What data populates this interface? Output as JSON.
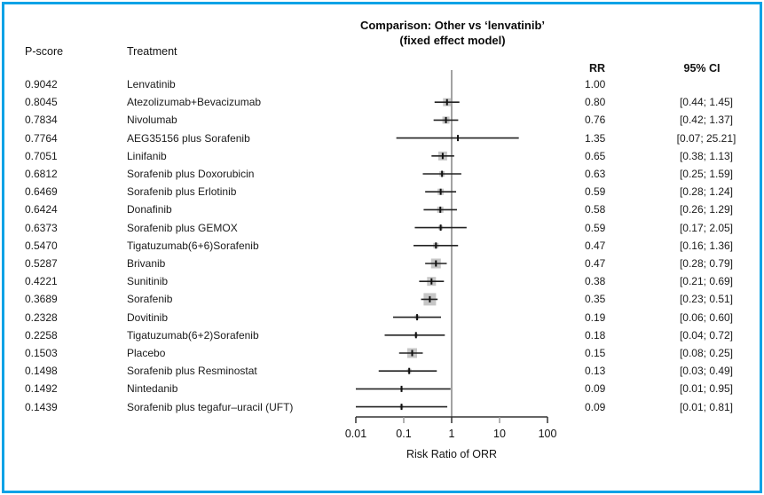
{
  "title": {
    "line1": "Comparison: Other vs ‘lenvatinib’",
    "line2": "(fixed effect model)"
  },
  "columns": {
    "p_score": "P-score",
    "treatment": "Treatment",
    "rr": "RR",
    "ci": "95% CI"
  },
  "chart_data": {
    "type": "forest",
    "xlabel": "Risk Ratio of ORR",
    "x_scale": "log",
    "x_min": 0.01,
    "x_max": 100,
    "x_ticks": [
      0.01,
      0.1,
      1,
      10,
      100
    ],
    "x_tick_labels": [
      "0.01",
      "0.1",
      "1",
      "10",
      "100"
    ],
    "reference_line": 1,
    "rows": [
      {
        "p_score": "0.9042",
        "treatment": "Lenvatinib",
        "rr": 1.0,
        "rr_label": "1.00",
        "ci_low": null,
        "ci_high": null,
        "ci_label": "",
        "weight": 0
      },
      {
        "p_score": "0.8045",
        "treatment": "Atezolizumab+Bevacizumab",
        "rr": 0.8,
        "rr_label": "0.80",
        "ci_low": 0.44,
        "ci_high": 1.45,
        "ci_label": "[0.44; 1.45]",
        "weight": 9
      },
      {
        "p_score": "0.7834",
        "treatment": "Nivolumab",
        "rr": 0.76,
        "rr_label": "0.76",
        "ci_low": 0.42,
        "ci_high": 1.37,
        "ci_label": "[0.42; 1.37]",
        "weight": 8
      },
      {
        "p_score": "0.7764",
        "treatment": "AEG35156 plus Sorafenib",
        "rr": 1.35,
        "rr_label": "1.35",
        "ci_low": 0.07,
        "ci_high": 25.21,
        "ci_label": "[0.07; 25.21]",
        "weight": 0
      },
      {
        "p_score": "0.7051",
        "treatment": "Linifanib",
        "rr": 0.65,
        "rr_label": "0.65",
        "ci_low": 0.38,
        "ci_high": 1.13,
        "ci_label": "[0.38; 1.13]",
        "weight": 10
      },
      {
        "p_score": "0.6812",
        "treatment": "Sorafenib plus Doxorubicin",
        "rr": 0.63,
        "rr_label": "0.63",
        "ci_low": 0.25,
        "ci_high": 1.59,
        "ci_label": "[0.25; 1.59]",
        "weight": 6
      },
      {
        "p_score": "0.6469",
        "treatment": "Sorafenib plus Erlotinib",
        "rr": 0.59,
        "rr_label": "0.59",
        "ci_low": 0.28,
        "ci_high": 1.24,
        "ci_label": "[0.28; 1.24]",
        "weight": 7
      },
      {
        "p_score": "0.6424",
        "treatment": "Donafinib",
        "rr": 0.58,
        "rr_label": "0.58",
        "ci_low": 0.26,
        "ci_high": 1.29,
        "ci_label": "[0.26; 1.29]",
        "weight": 7
      },
      {
        "p_score": "0.6373",
        "treatment": "Sorafenib plus GEMOX",
        "rr": 0.59,
        "rr_label": "0.59",
        "ci_low": 0.17,
        "ci_high": 2.05,
        "ci_label": "[0.17; 2.05]",
        "weight": 5
      },
      {
        "p_score": "0.5470",
        "treatment": "Tigatuzumab(6+6)Sorafenib",
        "rr": 0.47,
        "rr_label": "0.47",
        "ci_low": 0.16,
        "ci_high": 1.36,
        "ci_label": "[0.16; 1.36]",
        "weight": 6
      },
      {
        "p_score": "0.5287",
        "treatment": "Brivanib",
        "rr": 0.47,
        "rr_label": "0.47",
        "ci_low": 0.28,
        "ci_high": 0.79,
        "ci_label": "[0.28; 0.79]",
        "weight": 11
      },
      {
        "p_score": "0.4221",
        "treatment": "Sunitinib",
        "rr": 0.38,
        "rr_label": "0.38",
        "ci_low": 0.21,
        "ci_high": 0.69,
        "ci_label": "[0.21; 0.69]",
        "weight": 10
      },
      {
        "p_score": "0.3689",
        "treatment": "Sorafenib",
        "rr": 0.35,
        "rr_label": "0.35",
        "ci_low": 0.23,
        "ci_high": 0.51,
        "ci_label": "[0.23; 0.51]",
        "weight": 14
      },
      {
        "p_score": "0.2328",
        "treatment": "Dovitinib",
        "rr": 0.19,
        "rr_label": "0.19",
        "ci_low": 0.06,
        "ci_high": 0.6,
        "ci_label": "[0.06; 0.60]",
        "weight": 5
      },
      {
        "p_score": "0.2258",
        "treatment": "Tigatuzumab(6+2)Sorafenib",
        "rr": 0.18,
        "rr_label": "0.18",
        "ci_low": 0.04,
        "ci_high": 0.72,
        "ci_label": "[0.04; 0.72]",
        "weight": 4
      },
      {
        "p_score": "0.1503",
        "treatment": "Placebo",
        "rr": 0.15,
        "rr_label": "0.15",
        "ci_low": 0.08,
        "ci_high": 0.25,
        "ci_label": "[0.08; 0.25]",
        "weight": 11
      },
      {
        "p_score": "0.1498",
        "treatment": "Sorafenib plus Resminostat",
        "rr": 0.13,
        "rr_label": "0.13",
        "ci_low": 0.03,
        "ci_high": 0.49,
        "ci_label": "[0.03; 0.49]",
        "weight": 5
      },
      {
        "p_score": "0.1492",
        "treatment": "Nintedanib",
        "rr": 0.09,
        "rr_label": "0.09",
        "ci_low": 0.01,
        "ci_high": 0.95,
        "ci_label": "[0.01; 0.95]",
        "weight": 3
      },
      {
        "p_score": "0.1439",
        "treatment": "Sorafenib plus tegafur–uracil (UFT)",
        "rr": 0.09,
        "rr_label": "0.09",
        "ci_low": 0.01,
        "ci_high": 0.81,
        "ci_label": "[0.01; 0.81]",
        "weight": 4
      }
    ]
  },
  "colors": {
    "border": "#0aa2e6",
    "marker_square": "#c6c6c6",
    "ci_line": "#222222",
    "point_dash": "#111111",
    "reference_line": "#7a7a7a",
    "axis_line": "#333333",
    "minor_tick": "#999999",
    "text": "#111111"
  }
}
